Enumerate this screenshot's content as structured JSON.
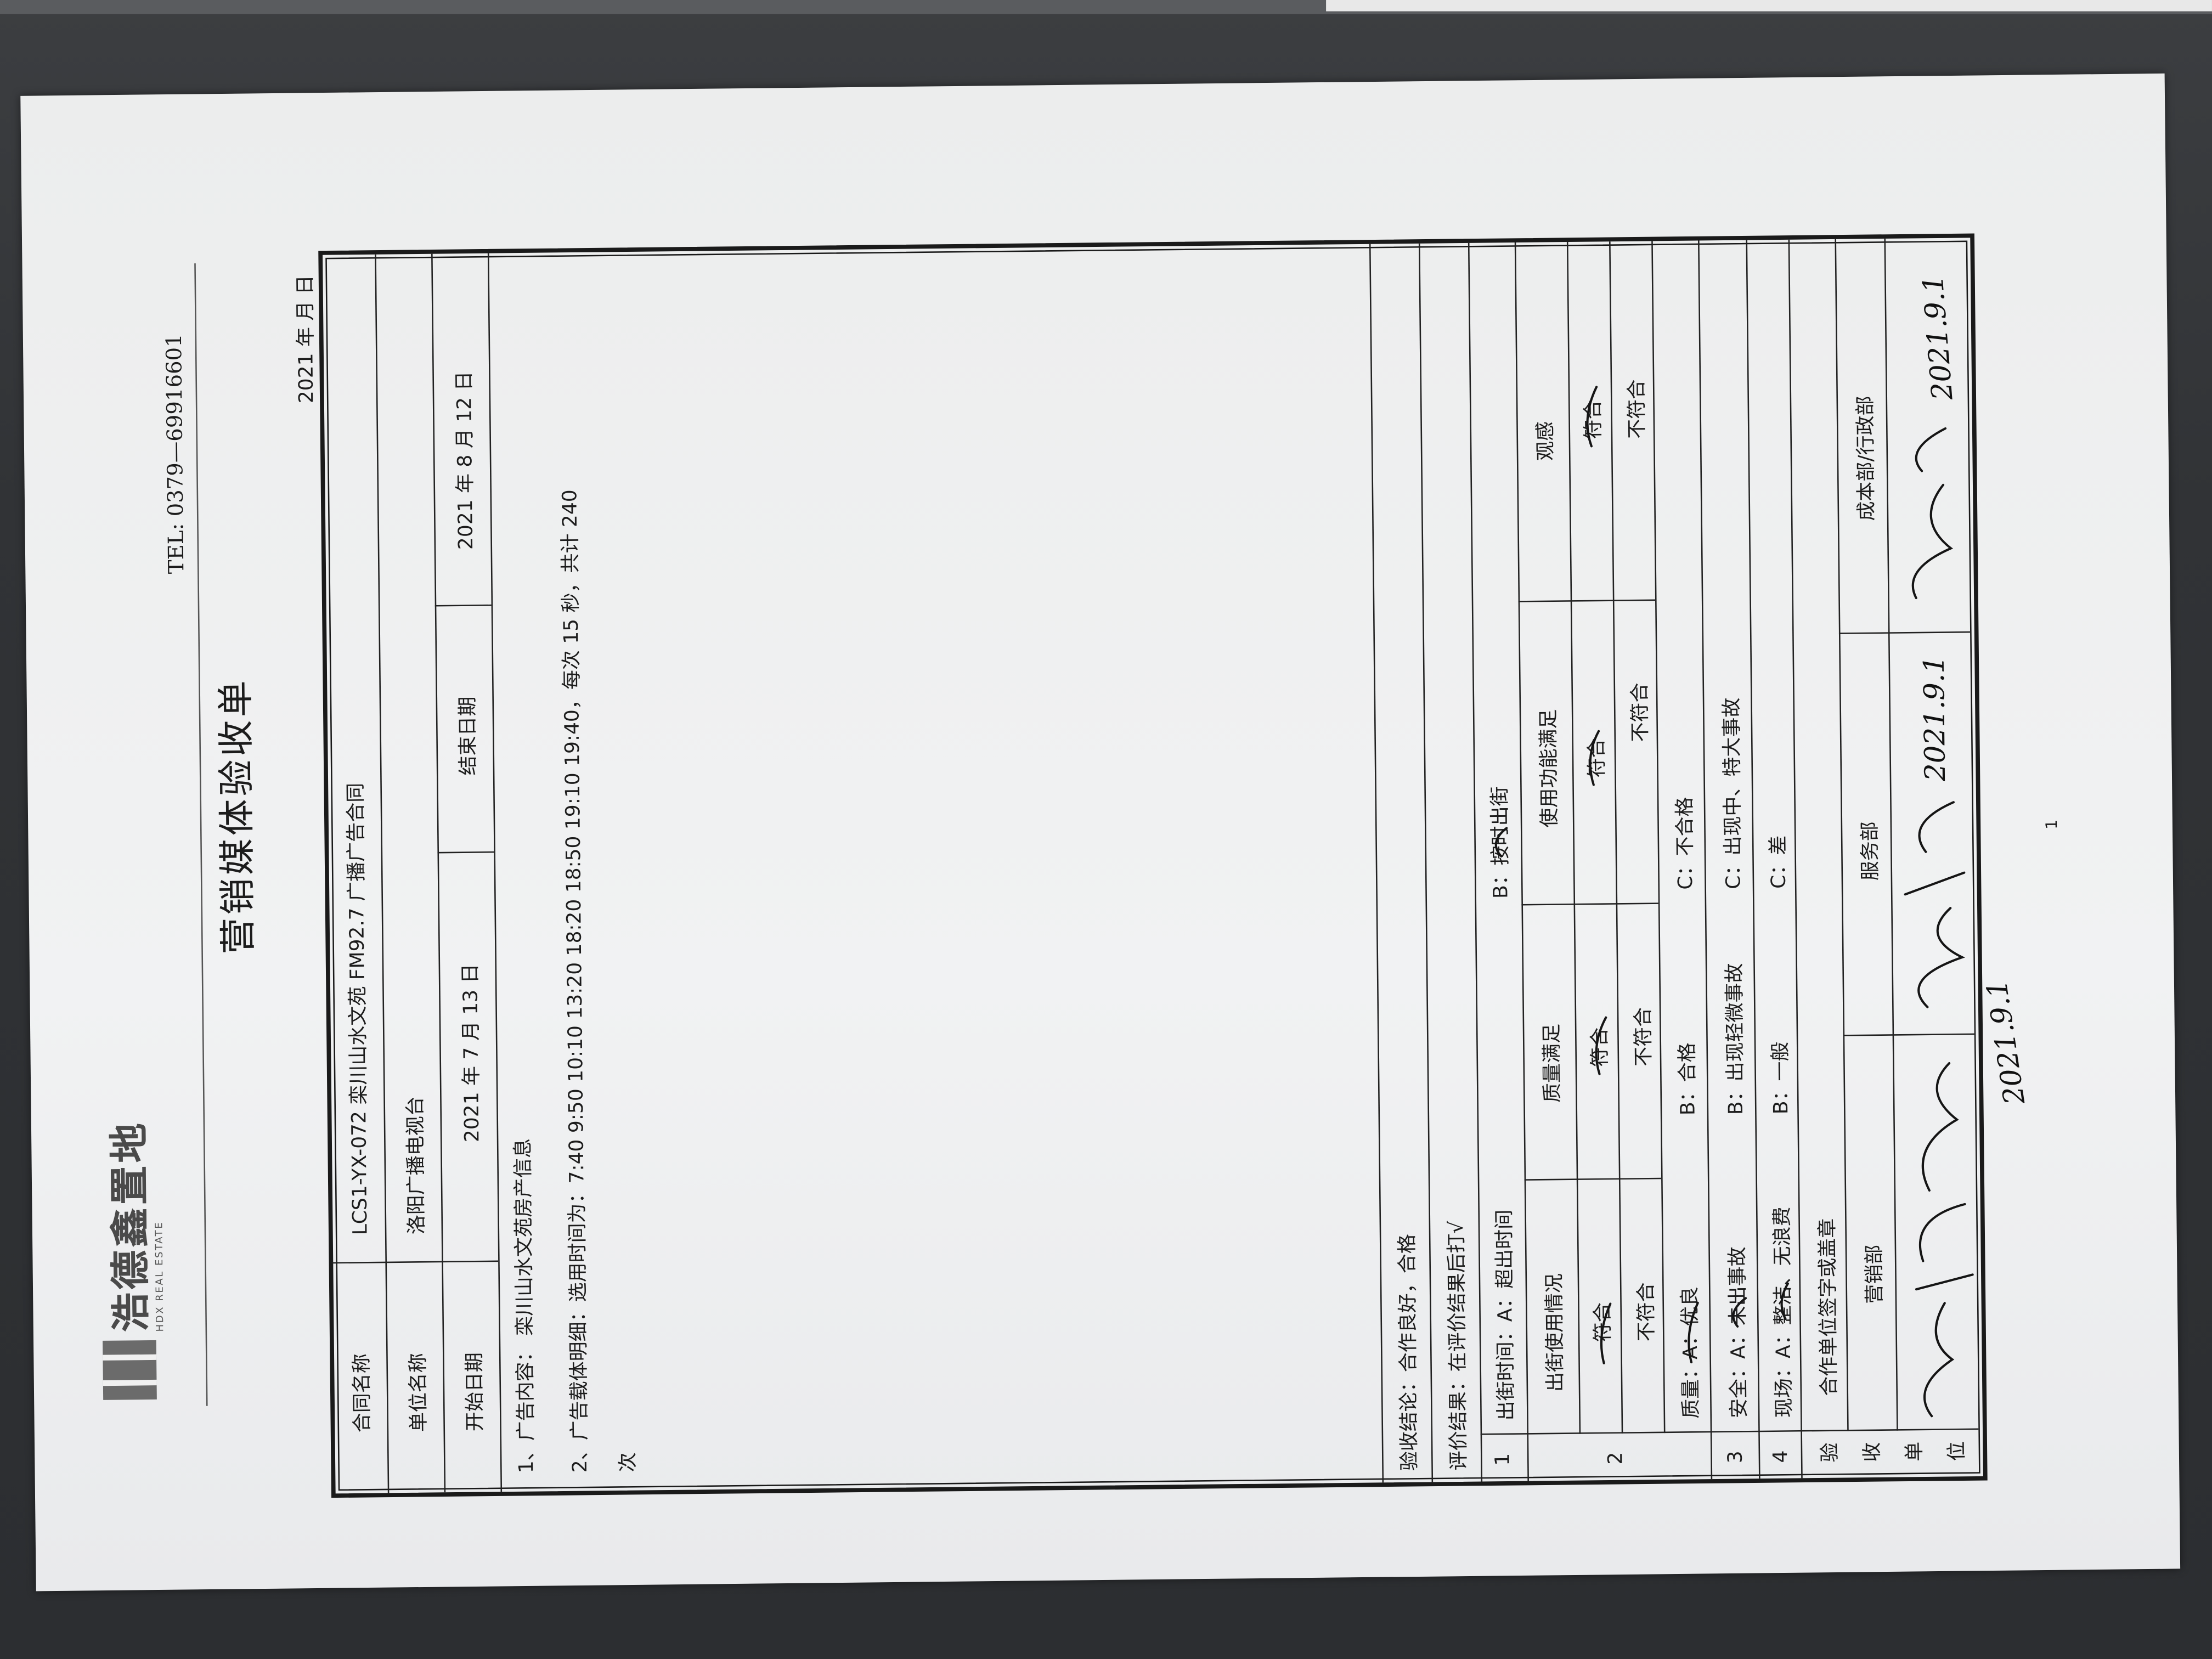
{
  "header": {
    "logo_text": "浩德鑫置地",
    "logo_subtitle": "HDX REAL ESTATE",
    "tel": "TEL: 0379—69916601",
    "title": "营销媒体验收单",
    "date_line": "2021 年    月    日"
  },
  "contract": {
    "name_label": "合同名称",
    "name_value": "LCS1-YX-072 栾川山水文苑 FM92.7 广播广告合同",
    "unit_label": "单位名称",
    "unit_value": "洛阳广播电视台",
    "start_label": "开始日期",
    "start_value": "2021 年 7 月 13 日",
    "end_label": "结束日期",
    "end_value": "2021 年 8 月 12 日"
  },
  "content": {
    "line1": "1、广告内容：  栾川山水文苑房产信息",
    "line2": "2、广告载体明细：选用时间为：7:40   9:50   10:10   13:20   18:20   18:50   19:10   19:40，每次 15 秒，共计 240",
    "line3": "次"
  },
  "evaluation": {
    "conclusion": "验收结论：合作良好，合格",
    "instruction": "评价结果：在评价结果后打√",
    "row1": {
      "num": "1",
      "a": "出街时间：A：超出时间",
      "b": "B：按时出街"
    },
    "row2": {
      "num": "2",
      "headers": [
        "出街使用情况",
        "质量满足",
        "使用功能满足",
        "观感"
      ],
      "pass": "符合",
      "fail": "不符合",
      "quality": {
        "a": "质量：A：优良",
        "b": "B：合格",
        "c": "C：不合格"
      }
    },
    "row3": {
      "num": "3",
      "a": "安全：A：未出事故",
      "b": "B：出现轻微事故",
      "c": "C：出现中、特大事故"
    },
    "row4": {
      "num": "4",
      "a": "现场：A：整洁、无浪费",
      "b": "B：一般",
      "c": "C：差"
    },
    "acceptance": {
      "label_chars": [
        "验",
        "收",
        "单",
        "位"
      ],
      "partner": "合作单位签字或盖章",
      "departments": [
        "营销部",
        "服务部",
        "成本部/行政部"
      ],
      "signature_dates": [
        "2021.9.1",
        "2021.9.1",
        "2021.9.1"
      ]
    }
  },
  "page_number": "1"
}
